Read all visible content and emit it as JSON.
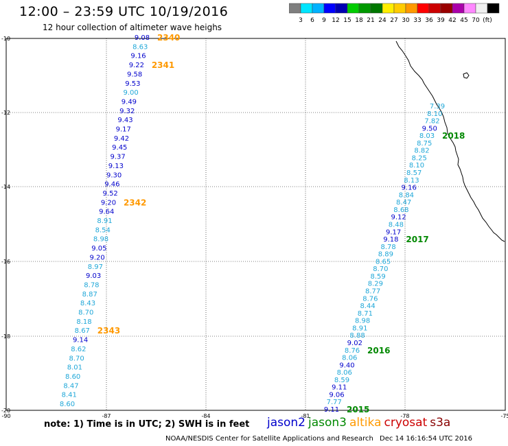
{
  "title": "12:00 – 23:59 UTC 10/19/2016",
  "subtitle": "12 hour collection of altimeter wave heighs",
  "note": "note: 1) Time is in UTC; 2) SWH is in feet",
  "credit": "NOAA/NESDIS Center for Satellite Applications and Research",
  "timestamp": "Dec 14 16:16:54 UTC 2016",
  "satellites": [
    {
      "name": "jason2",
      "color": "#0000cc"
    },
    {
      "name": "jason3",
      "color": "#008800"
    },
    {
      "name": "altika",
      "color": "#ff9900"
    },
    {
      "name": "cryosat",
      "color": "#cc0000"
    },
    {
      "name": "s3a",
      "color": "#880000"
    }
  ],
  "colorbar": {
    "colors": [
      "#7f7f7f",
      "#00e5ff",
      "#00b2ff",
      "#0000ff",
      "#0000b2",
      "#00cc00",
      "#009900",
      "#007700",
      "#ffee00",
      "#ffcc00",
      "#ff9900",
      "#ff0000",
      "#cc0000",
      "#990000",
      "#aa00aa",
      "#ff88ff",
      "#f0f0f0",
      "#000000"
    ],
    "labels": [
      "3",
      "6",
      "9",
      "12",
      "15",
      "18",
      "21",
      "24",
      "27",
      "30",
      "33",
      "36",
      "39",
      "42",
      "45",
      "70",
      "(ft)"
    ]
  },
  "axes": {
    "lat_labels": [
      "-10",
      "-12",
      "-14",
      "-16",
      "-18",
      "-20"
    ],
    "lon_labels": [
      "-90",
      "-87",
      "-84",
      "-81",
      "-78",
      "-75"
    ]
  },
  "tracks": [
    {
      "id": "west-track",
      "points": [
        {
          "v": "9.08",
          "c": "#0000cc"
        },
        {
          "v": "8.63",
          "c": "#1fa7d8"
        },
        {
          "v": "9.16",
          "c": "#0000cc"
        },
        {
          "v": "9.22",
          "c": "#0000cc"
        },
        {
          "v": "9.58",
          "c": "#0000cc"
        },
        {
          "v": "9.53",
          "c": "#0000cc"
        },
        {
          "v": "9.00",
          "c": "#1fa7d8"
        },
        {
          "v": "9.49",
          "c": "#0000cc"
        },
        {
          "v": "9.32",
          "c": "#0000cc"
        },
        {
          "v": "9.43",
          "c": "#0000cc"
        },
        {
          "v": "9.17",
          "c": "#0000cc"
        },
        {
          "v": "9.42",
          "c": "#0000cc"
        },
        {
          "v": "9.45",
          "c": "#0000cc"
        },
        {
          "v": "9.37",
          "c": "#0000cc"
        },
        {
          "v": "9.13",
          "c": "#0000cc"
        },
        {
          "v": "9.30",
          "c": "#0000cc"
        },
        {
          "v": "9.46",
          "c": "#0000cc"
        },
        {
          "v": "9.52",
          "c": "#0000cc"
        },
        {
          "v": "9.20",
          "c": "#0000cc"
        },
        {
          "v": "9.64",
          "c": "#0000cc"
        },
        {
          "v": "8.91",
          "c": "#1fa7d8"
        },
        {
          "v": "8.54",
          "c": "#1fa7d8"
        },
        {
          "v": "8.98",
          "c": "#1fa7d8"
        },
        {
          "v": "9.05",
          "c": "#0000cc"
        },
        {
          "v": "9.20",
          "c": "#0000cc"
        },
        {
          "v": "8.97",
          "c": "#1fa7d8"
        },
        {
          "v": "9.03",
          "c": "#0000cc"
        },
        {
          "v": "8.78",
          "c": "#1fa7d8"
        },
        {
          "v": "8.87",
          "c": "#1fa7d8"
        },
        {
          "v": "8.43",
          "c": "#1fa7d8"
        },
        {
          "v": "8.70",
          "c": "#1fa7d8"
        },
        {
          "v": "8.18",
          "c": "#1fa7d8"
        },
        {
          "v": "8.67",
          "c": "#1fa7d8"
        },
        {
          "v": "9.14",
          "c": "#0000cc"
        },
        {
          "v": "8.62",
          "c": "#1fa7d8"
        },
        {
          "v": "8.70",
          "c": "#1fa7d8"
        },
        {
          "v": "8.01",
          "c": "#1fa7d8"
        },
        {
          "v": "8.60",
          "c": "#1fa7d8"
        },
        {
          "v": "8.47",
          "c": "#1fa7d8"
        },
        {
          "v": "8.41",
          "c": "#1fa7d8"
        },
        {
          "v": "8.60",
          "c": "#1fa7d8"
        }
      ],
      "time_labels": [
        {
          "text": "2340",
          "index": 0,
          "color": "#ff9900"
        },
        {
          "text": "2341",
          "index": 3,
          "color": "#ff9900"
        },
        {
          "text": "2342",
          "index": 18,
          "color": "#ff9900"
        },
        {
          "text": "2343",
          "index": 32,
          "color": "#ff9900"
        }
      ]
    },
    {
      "id": "east-track",
      "points": [
        {
          "v": "7.39",
          "c": "#1fa7d8"
        },
        {
          "v": "8.10",
          "c": "#1fa7d8"
        },
        {
          "v": "7.82",
          "c": "#1fa7d8"
        },
        {
          "v": "9.50",
          "c": "#0000cc"
        },
        {
          "v": "8.03",
          "c": "#1fa7d8"
        },
        {
          "v": "8.75",
          "c": "#1fa7d8"
        },
        {
          "v": "8.82",
          "c": "#1fa7d8"
        },
        {
          "v": "8.25",
          "c": "#1fa7d8"
        },
        {
          "v": "8.10",
          "c": "#1fa7d8"
        },
        {
          "v": "8.57",
          "c": "#1fa7d8"
        },
        {
          "v": "8.13",
          "c": "#1fa7d8"
        },
        {
          "v": "9.16",
          "c": "#0000cc"
        },
        {
          "v": "8.84",
          "c": "#1fa7d8"
        },
        {
          "v": "8.47",
          "c": "#1fa7d8"
        },
        {
          "v": "8.68",
          "c": "#1fa7d8"
        },
        {
          "v": "9.12",
          "c": "#0000cc"
        },
        {
          "v": "8.48",
          "c": "#1fa7d8"
        },
        {
          "v": "9.17",
          "c": "#0000cc"
        },
        {
          "v": "9.18",
          "c": "#0000cc"
        },
        {
          "v": "8.78",
          "c": "#1fa7d8"
        },
        {
          "v": "8.89",
          "c": "#1fa7d8"
        },
        {
          "v": "8.65",
          "c": "#1fa7d8"
        },
        {
          "v": "8.70",
          "c": "#1fa7d8"
        },
        {
          "v": "8.59",
          "c": "#1fa7d8"
        },
        {
          "v": "8.29",
          "c": "#1fa7d8"
        },
        {
          "v": "8.77",
          "c": "#1fa7d8"
        },
        {
          "v": "8.76",
          "c": "#1fa7d8"
        },
        {
          "v": "8.44",
          "c": "#1fa7d8"
        },
        {
          "v": "8.71",
          "c": "#1fa7d8"
        },
        {
          "v": "8.98",
          "c": "#1fa7d8"
        },
        {
          "v": "8.91",
          "c": "#1fa7d8"
        },
        {
          "v": "8.88",
          "c": "#1fa7d8"
        },
        {
          "v": "9.02",
          "c": "#0000cc"
        },
        {
          "v": "8.76",
          "c": "#1fa7d8"
        },
        {
          "v": "8.06",
          "c": "#1fa7d8"
        },
        {
          "v": "9.40",
          "c": "#0000cc"
        },
        {
          "v": "8.06",
          "c": "#1fa7d8"
        },
        {
          "v": "8.59",
          "c": "#1fa7d8"
        },
        {
          "v": "9.11",
          "c": "#0000cc"
        },
        {
          "v": "9.06",
          "c": "#0000cc"
        },
        {
          "v": "7.77",
          "c": "#1fa7d8"
        },
        {
          "v": "9.11",
          "c": "#0000cc"
        }
      ],
      "time_labels": [
        {
          "text": "2018",
          "index": 4,
          "color": "#008800"
        },
        {
          "text": "2017",
          "index": 18,
          "color": "#008800"
        },
        {
          "text": "2016",
          "index": 33,
          "color": "#008800"
        },
        {
          "text": "2015",
          "index": 41,
          "color": "#008800"
        }
      ]
    }
  ]
}
